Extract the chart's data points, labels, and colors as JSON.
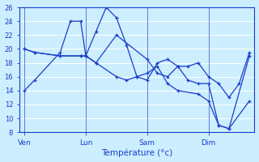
{
  "xlabel": "Température (°c)",
  "background_color": "#cceeff",
  "grid_color": "#ffffff",
  "line_color": "#1a3ec8",
  "ylim": [
    8,
    26
  ],
  "yticks": [
    8,
    10,
    12,
    14,
    16,
    18,
    20,
    22,
    24,
    26
  ],
  "xtick_positions": [
    0,
    24,
    48,
    72
  ],
  "xtick_labels": [
    "Ven",
    "Lun",
    "Sam",
    "Dim"
  ],
  "xlim": [
    -2,
    90
  ],
  "series": [
    {
      "x": [
        0,
        4,
        14,
        18,
        22,
        24,
        28,
        32,
        36,
        40,
        44,
        48,
        52,
        56,
        60,
        64,
        68,
        72,
        76,
        80,
        88
      ],
      "y": [
        14,
        15.5,
        19.5,
        24,
        24,
        19,
        22.5,
        26,
        24.5,
        20.5,
        16,
        15.5,
        18,
        18.5,
        17.5,
        15.5,
        15,
        15,
        9,
        8.5,
        19
      ]
    },
    {
      "x": [
        0,
        4,
        14,
        22,
        24,
        28,
        36,
        48,
        52,
        56,
        60,
        64,
        68,
        72,
        76,
        80,
        84,
        88
      ],
      "y": [
        20,
        19.5,
        19,
        19,
        19,
        18,
        22,
        18.5,
        16.5,
        16,
        17.5,
        17.5,
        18,
        16,
        15,
        13,
        15,
        19.5
      ]
    },
    {
      "x": [
        0,
        4,
        14,
        22,
        24,
        28,
        36,
        40,
        44,
        48,
        52,
        56,
        60,
        68,
        72,
        76,
        80,
        88
      ],
      "y": [
        20,
        19.5,
        19,
        19,
        19,
        18,
        16,
        15.5,
        16,
        16.5,
        17.5,
        15,
        14,
        13.5,
        12.5,
        9,
        8.5,
        12.5
      ]
    }
  ]
}
